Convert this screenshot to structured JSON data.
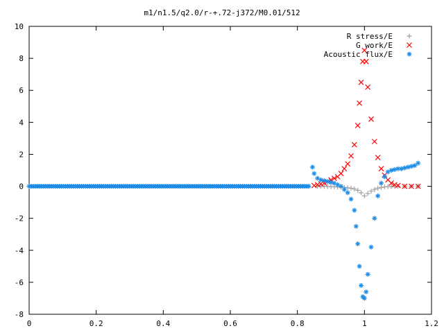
{
  "chart_data": {
    "type": "scatter",
    "title": "m1/n1.5/q2.0/r-+.72-j372/M0.01/512",
    "xlabel": "",
    "ylabel": "",
    "xlim": [
      0,
      1.2
    ],
    "ylim": [
      -8,
      10
    ],
    "x_ticks": [
      "0",
      "0.2",
      "0.4",
      "0.6",
      "0.8",
      "1",
      "1.2"
    ],
    "y_ticks": [
      "10",
      "8",
      "6",
      "4",
      "2",
      "0",
      "-2",
      "-4",
      "-6",
      "-8"
    ],
    "grid": false,
    "legend_position": "top-right",
    "series": [
      {
        "name": "R stress/E",
        "marker": "plus",
        "color": "#a0a0a0",
        "points": [
          [
            0.86,
            0.0
          ],
          [
            0.87,
            0.0
          ],
          [
            0.88,
            -0.01
          ],
          [
            0.89,
            -0.01
          ],
          [
            0.9,
            -0.02
          ],
          [
            0.91,
            -0.03
          ],
          [
            0.92,
            -0.04
          ],
          [
            0.93,
            -0.05
          ],
          [
            0.94,
            -0.07
          ],
          [
            0.95,
            -0.09
          ],
          [
            0.96,
            -0.12
          ],
          [
            0.97,
            -0.17
          ],
          [
            0.98,
            -0.25
          ],
          [
            0.99,
            -0.4
          ],
          [
            1.0,
            -0.6
          ],
          [
            1.01,
            -0.45
          ],
          [
            1.02,
            -0.3
          ],
          [
            1.03,
            -0.2
          ],
          [
            1.04,
            -0.12
          ],
          [
            1.05,
            -0.07
          ],
          [
            1.06,
            -0.04
          ],
          [
            1.07,
            -0.02
          ],
          [
            1.08,
            -0.01
          ],
          [
            1.09,
            0.0
          ],
          [
            1.1,
            0.0
          ],
          [
            1.12,
            0.0
          ],
          [
            1.14,
            0.0
          ],
          [
            1.16,
            0.0
          ]
        ]
      },
      {
        "name": "G work/E",
        "marker": "cross",
        "color": "#ff0000",
        "points": [
          [
            0.85,
            0.05
          ],
          [
            0.86,
            0.1
          ],
          [
            0.87,
            0.15
          ],
          [
            0.88,
            0.2
          ],
          [
            0.89,
            0.3
          ],
          [
            0.9,
            0.4
          ],
          [
            0.91,
            0.5
          ],
          [
            0.92,
            0.6
          ],
          [
            0.93,
            0.8
          ],
          [
            0.94,
            1.1
          ],
          [
            0.95,
            1.4
          ],
          [
            0.96,
            1.9
          ],
          [
            0.97,
            2.6
          ],
          [
            0.98,
            3.8
          ],
          [
            0.985,
            5.2
          ],
          [
            0.99,
            6.5
          ],
          [
            0.995,
            7.8
          ],
          [
            1.0,
            8.5
          ],
          [
            1.005,
            7.8
          ],
          [
            1.01,
            6.2
          ],
          [
            1.02,
            4.2
          ],
          [
            1.03,
            2.8
          ],
          [
            1.04,
            1.8
          ],
          [
            1.05,
            1.1
          ],
          [
            1.06,
            0.7
          ],
          [
            1.07,
            0.4
          ],
          [
            1.08,
            0.2
          ],
          [
            1.09,
            0.1
          ],
          [
            1.1,
            0.05
          ],
          [
            1.12,
            0.0
          ],
          [
            1.14,
            0.0
          ],
          [
            1.16,
            0.0
          ]
        ]
      },
      {
        "name": "Acoustic flux/E",
        "marker": "star",
        "color": "#1e8be6",
        "points": [
          [
            0.0,
            0.0
          ],
          [
            0.84,
            0.0
          ],
          [
            0.845,
            1.2
          ],
          [
            0.85,
            0.8
          ],
          [
            0.86,
            0.5
          ],
          [
            0.87,
            0.4
          ],
          [
            0.88,
            0.35
          ],
          [
            0.89,
            0.3
          ],
          [
            0.9,
            0.25
          ],
          [
            0.91,
            0.2
          ],
          [
            0.92,
            0.1
          ],
          [
            0.93,
            0.0
          ],
          [
            0.94,
            -0.2
          ],
          [
            0.95,
            -0.4
          ],
          [
            0.96,
            -0.8
          ],
          [
            0.97,
            -1.5
          ],
          [
            0.975,
            -2.5
          ],
          [
            0.98,
            -3.6
          ],
          [
            0.985,
            -5.0
          ],
          [
            0.99,
            -6.2
          ],
          [
            0.995,
            -6.9
          ],
          [
            1.0,
            -7.0
          ],
          [
            1.005,
            -6.6
          ],
          [
            1.01,
            -5.5
          ],
          [
            1.02,
            -3.8
          ],
          [
            1.03,
            -2.0
          ],
          [
            1.04,
            -0.6
          ],
          [
            1.05,
            0.2
          ],
          [
            1.06,
            0.6
          ],
          [
            1.07,
            0.9
          ],
          [
            1.08,
            1.0
          ],
          [
            1.09,
            1.05
          ],
          [
            1.1,
            1.1
          ],
          [
            1.11,
            1.1
          ],
          [
            1.12,
            1.15
          ],
          [
            1.13,
            1.2
          ],
          [
            1.14,
            1.25
          ],
          [
            1.15,
            1.3
          ],
          [
            1.16,
            1.45
          ]
        ]
      }
    ]
  }
}
